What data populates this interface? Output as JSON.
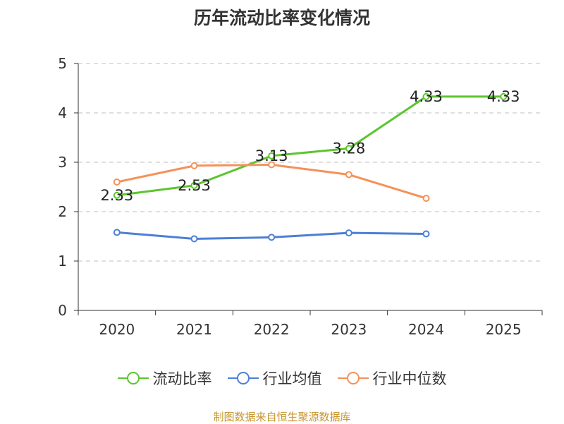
{
  "chart_data": {
    "type": "line",
    "title": "历年流动比率变化情况",
    "categories": [
      "2020",
      "2021",
      "2022",
      "2023",
      "2024",
      "2025"
    ],
    "ylim": [
      0,
      5
    ],
    "yticks": [
      "0",
      "1",
      "2",
      "3",
      "4",
      "5"
    ],
    "grid": "horizontal-dashed",
    "legend_position": "bottom",
    "series": [
      {
        "name": "流动比率",
        "color": "#5cc52e",
        "show_labels": true,
        "values": [
          2.33,
          2.53,
          3.13,
          3.28,
          4.33,
          4.33
        ],
        "labels": [
          "2.33",
          "2.53",
          "3.13",
          "3.28",
          "4.33",
          "4.33"
        ]
      },
      {
        "name": "行业均值",
        "color": "#4d7fd6",
        "show_labels": false,
        "values": [
          1.58,
          1.45,
          1.48,
          1.57,
          1.55,
          null
        ]
      },
      {
        "name": "行业中位数",
        "color": "#f59159",
        "show_labels": false,
        "values": [
          2.6,
          2.93,
          2.95,
          2.75,
          2.27,
          null
        ]
      }
    ],
    "source": "制图数据来自恒生聚源数据库"
  }
}
